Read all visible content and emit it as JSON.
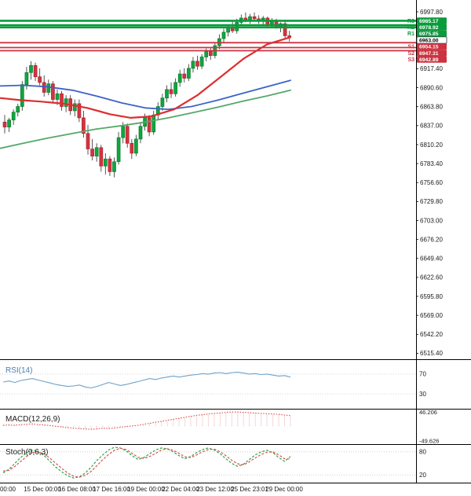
{
  "chart_data": {
    "type": "candlestick",
    "x_labels": [
      "00:00",
      "15 Dec 00:00",
      "16 Dec 08:00",
      "17 Dec 16:00",
      "19 Dec 00:00",
      "22 Dec 04:00",
      "23 Dec 12:00",
      "25 Dec 23:01",
      "29 Dec 00:00"
    ],
    "price_axis": {
      "ylim": [
        6507.0,
        7014.5
      ],
      "ticks": [
        "6997.80",
        "6971.00",
        "6944.20",
        "6917.40",
        "6890.60",
        "6863.80",
        "6837.00",
        "6810.20",
        "6783.40",
        "6756.60",
        "6729.80",
        "6703.00",
        "6676.20",
        "6649.40",
        "6622.60",
        "6595.80",
        "6569.00",
        "6542.20",
        "6515.40"
      ]
    },
    "levels": [
      {
        "name": "R3",
        "price": "6985.17",
        "type": "resistance"
      },
      {
        "name": "R2",
        "price": "6978.92",
        "type": "resistance"
      },
      {
        "name": "R1",
        "price": "6975.85",
        "type": "resistance"
      },
      {
        "name": "",
        "price": "6963.00",
        "type": "current"
      },
      {
        "name": "S1",
        "price": "6954.15",
        "type": "support"
      },
      {
        "name": "S2",
        "price": "6947.31",
        "type": "support"
      },
      {
        "name": "S3",
        "price": "6942.89",
        "type": "support"
      }
    ],
    "candles": [
      [
        6842,
        6852,
        6826,
        6835
      ],
      [
        6835,
        6848,
        6828,
        6845
      ],
      [
        6845,
        6860,
        6838,
        6856
      ],
      [
        6856,
        6868,
        6850,
        6864
      ],
      [
        6864,
        6900,
        6858,
        6895
      ],
      [
        6895,
        6920,
        6888,
        6912
      ],
      [
        6912,
        6928,
        6902,
        6922
      ],
      [
        6922,
        6926,
        6900,
        6906
      ],
      [
        6906,
        6918,
        6894,
        6898
      ],
      [
        6898,
        6908,
        6878,
        6884
      ],
      [
        6884,
        6902,
        6880,
        6896
      ],
      [
        6896,
        6900,
        6868,
        6874
      ],
      [
        6874,
        6888,
        6866,
        6882
      ],
      [
        6882,
        6886,
        6858,
        6864
      ],
      [
        6864,
        6880,
        6856,
        6875
      ],
      [
        6875,
        6880,
        6852,
        6858
      ],
      [
        6858,
        6874,
        6850,
        6868
      ],
      [
        6868,
        6874,
        6842,
        6848
      ],
      [
        6848,
        6858,
        6820,
        6826
      ],
      [
        6826,
        6838,
        6796,
        6804
      ],
      [
        6804,
        6818,
        6788,
        6794
      ],
      [
        6794,
        6812,
        6786,
        6806
      ],
      [
        6806,
        6810,
        6772,
        6780
      ],
      [
        6780,
        6798,
        6768,
        6790
      ],
      [
        6790,
        6794,
        6766,
        6772
      ],
      [
        6772,
        6792,
        6764,
        6786
      ],
      [
        6786,
        6828,
        6782,
        6820
      ],
      [
        6820,
        6842,
        6812,
        6836
      ],
      [
        6836,
        6840,
        6806,
        6812
      ],
      [
        6812,
        6818,
        6790,
        6798
      ],
      [
        6798,
        6824,
        6794,
        6818
      ],
      [
        6818,
        6842,
        6812,
        6836
      ],
      [
        6836,
        6854,
        6830,
        6848
      ],
      [
        6848,
        6852,
        6822,
        6828
      ],
      [
        6828,
        6858,
        6824,
        6852
      ],
      [
        6852,
        6870,
        6846,
        6864
      ],
      [
        6864,
        6882,
        6858,
        6876
      ],
      [
        6876,
        6894,
        6870,
        6888
      ],
      [
        6888,
        6898,
        6876,
        6882
      ],
      [
        6882,
        6904,
        6878,
        6898
      ],
      [
        6898,
        6916,
        6892,
        6910
      ],
      [
        6910,
        6918,
        6898,
        6904
      ],
      [
        6904,
        6924,
        6900,
        6918
      ],
      [
        6918,
        6934,
        6912,
        6928
      ],
      [
        6928,
        6936,
        6916,
        6921
      ],
      [
        6921,
        6938,
        6917,
        6934
      ],
      [
        6934,
        6946,
        6928,
        6942
      ],
      [
        6942,
        6948,
        6930,
        6936
      ],
      [
        6936,
        6954,
        6932,
        6950
      ],
      [
        6950,
        6966,
        6945,
        6960
      ],
      [
        6960,
        6974,
        6955,
        6969
      ],
      [
        6969,
        6980,
        6963,
        6975
      ],
      [
        6975,
        6984,
        6968,
        6971
      ],
      [
        6971,
        6988,
        6967,
        6983
      ],
      [
        6983,
        6994,
        6978,
        6989
      ],
      [
        6989,
        6997,
        6983,
        6986
      ],
      [
        6986,
        6995,
        6981,
        6991
      ],
      [
        6991,
        6997,
        6985,
        6988
      ],
      [
        6988,
        6993,
        6981,
        6985
      ],
      [
        6985,
        6992,
        6979,
        6989
      ],
      [
        6989,
        6991,
        6977,
        6980
      ],
      [
        6980,
        6989,
        6975,
        6985
      ],
      [
        6985,
        6988,
        6974,
        6977
      ],
      [
        6977,
        6983,
        6969,
        6981
      ],
      [
        6981,
        6984,
        6959,
        6964
      ],
      [
        6964,
        6971,
        6956,
        6962
      ]
    ],
    "moving_averages": [
      {
        "name": "ma-slow-green",
        "color": "#55a868",
        "width": 1.8,
        "points": [
          [
            0,
            6805
          ],
          [
            0.08,
            6812
          ],
          [
            0.16,
            6819
          ],
          [
            0.25,
            6826
          ],
          [
            0.33,
            6832
          ],
          [
            0.42,
            6837
          ],
          [
            0.5,
            6842
          ],
          [
            0.58,
            6848
          ],
          [
            0.66,
            6855
          ],
          [
            0.75,
            6863
          ],
          [
            0.83,
            6871
          ],
          [
            0.92,
            6879
          ],
          [
            1,
            6887
          ]
        ]
      },
      {
        "name": "ma-mid-blue",
        "color": "#3b62c8",
        "width": 1.8,
        "points": [
          [
            0,
            6893
          ],
          [
            0.08,
            6894
          ],
          [
            0.16,
            6892
          ],
          [
            0.25,
            6887
          ],
          [
            0.33,
            6879
          ],
          [
            0.42,
            6869
          ],
          [
            0.5,
            6862
          ],
          [
            0.58,
            6860
          ],
          [
            0.66,
            6864
          ],
          [
            0.75,
            6873
          ],
          [
            0.83,
            6882
          ],
          [
            0.92,
            6892
          ],
          [
            1,
            6901
          ]
        ]
      },
      {
        "name": "ma-fast-red",
        "color": "#dd2e2e",
        "width": 2.2,
        "points": [
          [
            0,
            6876
          ],
          [
            0.07,
            6873
          ],
          [
            0.14,
            6871
          ],
          [
            0.22,
            6868
          ],
          [
            0.3,
            6862
          ],
          [
            0.38,
            6853
          ],
          [
            0.45,
            6848
          ],
          [
            0.52,
            6850
          ],
          [
            0.6,
            6860
          ],
          [
            0.68,
            6880
          ],
          [
            0.76,
            6906
          ],
          [
            0.84,
            6932
          ],
          [
            0.92,
            6952
          ],
          [
            1,
            6962
          ]
        ]
      }
    ],
    "panels": {
      "rsi": {
        "label": "RSI(14)",
        "axis": [
          "70",
          "30"
        ],
        "ylim": [
          0,
          100
        ],
        "color": "#6ca2cc",
        "values": [
          54,
          56,
          53,
          57,
          59,
          61,
          58,
          55,
          52,
          49,
          47,
          45,
          46,
          48,
          44,
          42,
          45,
          49,
          53,
          50,
          47,
          49,
          52,
          55,
          58,
          61,
          59,
          62,
          64,
          66,
          64,
          66,
          68,
          69,
          71,
          70,
          72,
          73,
          71,
          73,
          74,
          72,
          70,
          71,
          69,
          70,
          68,
          66,
          67,
          64
        ]
      },
      "macd": {
        "label": "MACD(12,26,9)",
        "axis": [
          "46.206",
          "-49.626"
        ],
        "ylim": [
          -55,
          52
        ],
        "color": "#d84848",
        "hist_color": "#e8a8a8",
        "values": [
          2,
          3,
          2,
          4,
          5,
          6,
          4,
          3,
          1,
          -1,
          -3,
          -5,
          -7,
          -8,
          -9,
          -10,
          -9,
          -7,
          -8,
          -6,
          -4,
          -2,
          0,
          2,
          5,
          8,
          11,
          14,
          17,
          20,
          23,
          26,
          29,
          32,
          34,
          36,
          38,
          39,
          41,
          42,
          42,
          41,
          40,
          39,
          38,
          37,
          36,
          35,
          33,
          31
        ]
      },
      "stoch": {
        "label": "Stoch(9,6,3)",
        "axis": [
          "80",
          "20"
        ],
        "ylim": [
          0,
          100
        ],
        "k_color": "#35a14f",
        "d_color": "#d4554f",
        "k": [
          25,
          35,
          50,
          65,
          78,
          85,
          80,
          70,
          55,
          40,
          28,
          18,
          12,
          15,
          25,
          40,
          58,
          72,
          85,
          92,
          90,
          82,
          70,
          60,
          65,
          75,
          85,
          90,
          88,
          80,
          70,
          62,
          68,
          78,
          86,
          90,
          85,
          75,
          62,
          50,
          42,
          48,
          60,
          72,
          80,
          84,
          78,
          65,
          55,
          68
        ],
        "d": [
          30,
          32,
          42,
          55,
          68,
          78,
          80,
          75,
          63,
          50,
          37,
          25,
          17,
          14,
          19,
          29,
          44,
          60,
          73,
          84,
          89,
          86,
          76,
          66,
          63,
          68,
          76,
          85,
          88,
          84,
          76,
          67,
          65,
          72,
          80,
          86,
          87,
          80,
          70,
          58,
          49,
          46,
          54,
          64,
          73,
          79,
          80,
          72,
          62,
          61
        ]
      }
    },
    "colors": {
      "up": "#0fa63e",
      "up_border": "#0b7d2f",
      "down": "#d6323e",
      "down_border": "#a52630",
      "wick": "#444444",
      "resistance": "#0a9b3c",
      "support": "#cc3340",
      "axis_text": "#1a1a1a",
      "separator": "#000000"
    }
  }
}
